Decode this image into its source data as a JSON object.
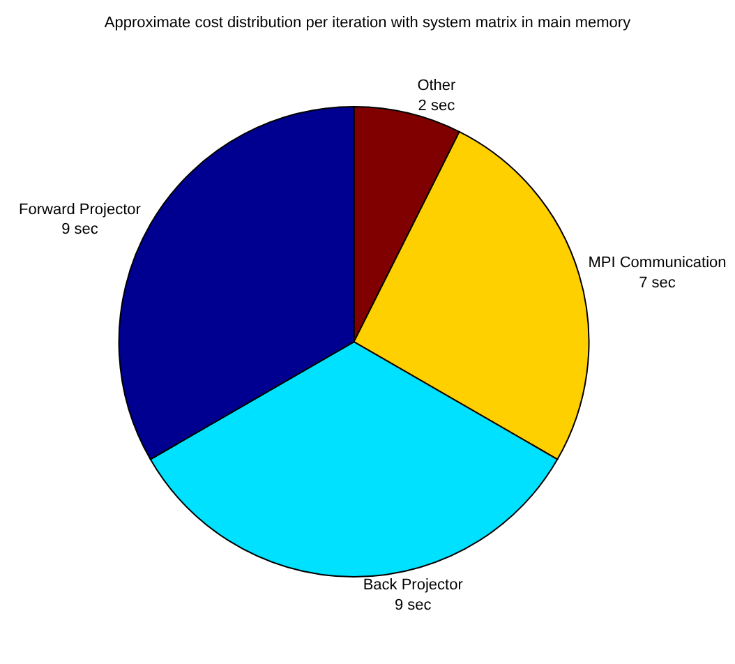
{
  "chart_data": {
    "type": "pie",
    "title": "Approximate cost distribution per iteration with system matrix in main memory",
    "categories": [
      "Other",
      "MPI Communication",
      "Back Projector",
      "Forward Projector"
    ],
    "values": [
      2,
      7,
      9,
      9
    ],
    "value_labels": [
      "2 sec",
      "7 sec",
      "9 sec",
      "9 sec"
    ],
    "colors": [
      "#800000",
      "#ffd000",
      "#00e0ff",
      "#000090"
    ]
  }
}
